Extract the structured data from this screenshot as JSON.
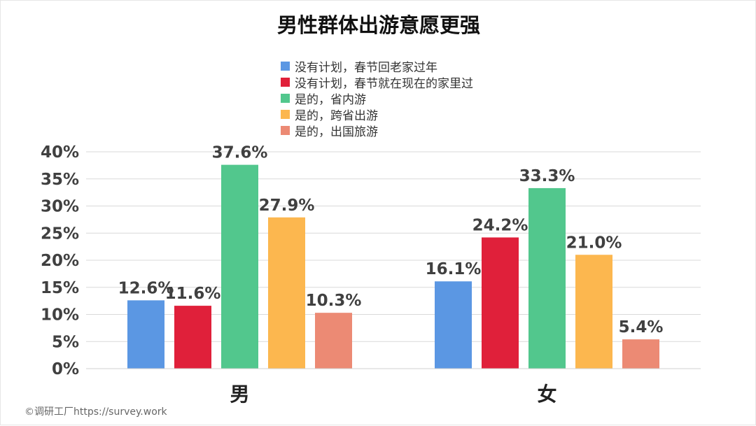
{
  "chart_data": {
    "type": "bar",
    "title": "男性群体出游意愿更强",
    "categories": [
      "男",
      "女"
    ],
    "ylim": [
      0,
      40
    ],
    "yticks": [
      0,
      5,
      10,
      15,
      20,
      25,
      30,
      35,
      40
    ],
    "ytick_suffix": "%",
    "grid": true,
    "legend_position": "top-center",
    "series": [
      {
        "name": "没有计划，春节回老家过年",
        "color": "#5b97e3",
        "values": [
          12.6,
          16.1
        ],
        "labels": [
          "12.6%",
          "16.1%"
        ]
      },
      {
        "name": "没有计划，春节就在现在的家里过",
        "color": "#e0203a",
        "values": [
          11.6,
          24.2
        ],
        "labels": [
          "11.6%",
          "24.2%"
        ]
      },
      {
        "name": "是的，省内游",
        "color": "#52c78d",
        "values": [
          37.6,
          33.3
        ],
        "labels": [
          "37.6%",
          "33.3%"
        ]
      },
      {
        "name": "是的，跨省出游",
        "color": "#fcb74f",
        "values": [
          27.9,
          21.0
        ],
        "labels": [
          "27.9%",
          "21.0%"
        ]
      },
      {
        "name": "是的，出国旅游",
        "color": "#ec8a74",
        "values": [
          10.3,
          5.4
        ],
        "labels": [
          "10.3%",
          "5.4%"
        ]
      }
    ]
  },
  "footer": {
    "copyright": "©调研工厂https://survey.work"
  }
}
